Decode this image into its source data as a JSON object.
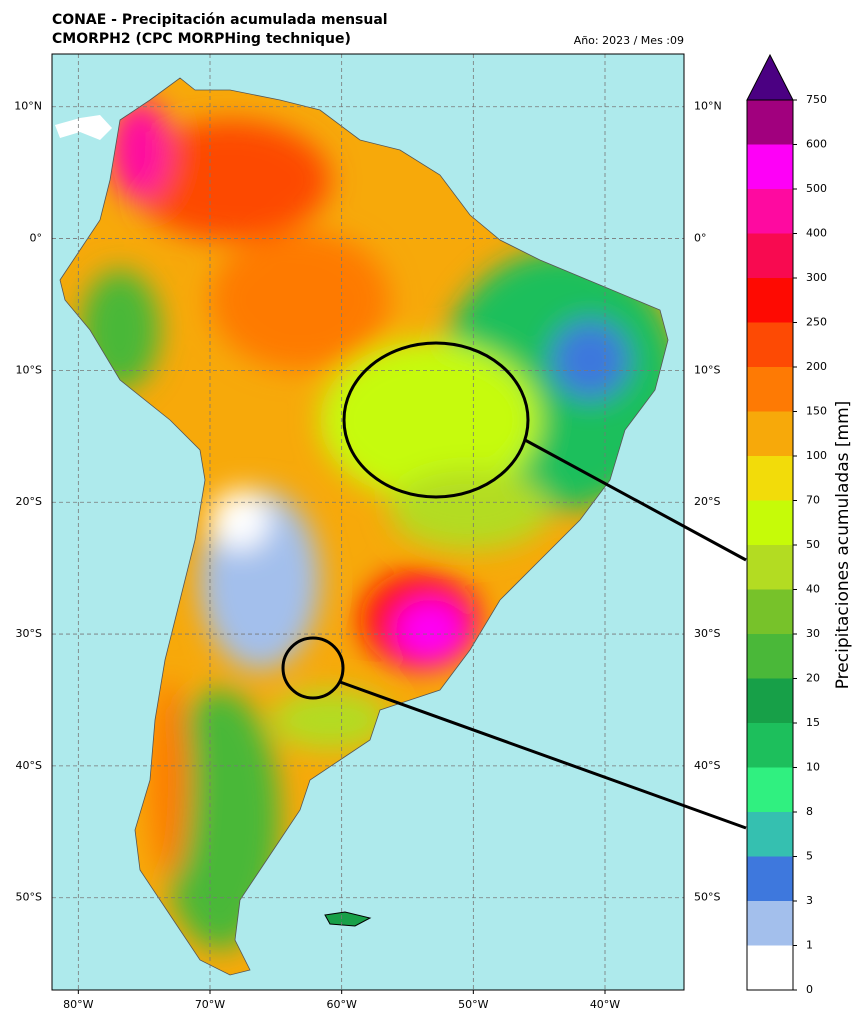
{
  "header": {
    "title": "CONAE - Precipitación acumulada mensual",
    "subtitle": "CMORPH2 (CPC MORPHing technique)",
    "date": "Año: 2023 / Mes :09"
  },
  "map": {
    "lon_range": [
      -82,
      -34
    ],
    "lat_range": [
      14,
      -57
    ],
    "lat_ticks": [
      {
        "value": 10,
        "label": "10°N"
      },
      {
        "value": 0,
        "label": "0°"
      },
      {
        "value": -10,
        "label": "10°S"
      },
      {
        "value": -20,
        "label": "20°S"
      },
      {
        "value": -30,
        "label": "30°S"
      },
      {
        "value": -40,
        "label": "40°S"
      },
      {
        "value": -50,
        "label": "50°S"
      }
    ],
    "lon_ticks": [
      {
        "value": -80,
        "label": "80°W"
      },
      {
        "value": -70,
        "label": "70°W"
      },
      {
        "value": -60,
        "label": "60°W"
      },
      {
        "value": -50,
        "label": "50°W"
      },
      {
        "value": -40,
        "label": "40°W"
      }
    ]
  },
  "colorbar": {
    "label": "Precipitaciones acumuladas [mm]",
    "levels": [
      0,
      1,
      3,
      5,
      8,
      10,
      15,
      20,
      30,
      40,
      50,
      70,
      100,
      150,
      200,
      250,
      300,
      400,
      500,
      600,
      750
    ],
    "colors": [
      "#ffffff",
      "#a3bfec",
      "#3e78dd",
      "#35c0b0",
      "#30f080",
      "#1dbf5c",
      "#17a048",
      "#4ab839",
      "#77c22a",
      "#b3dc22",
      "#c6fb08",
      "#f2dc0a",
      "#f7a90a",
      "#fe7a04",
      "#fd4a04",
      "#fe0a02",
      "#f80a50",
      "#fe0aa0",
      "#fe00f7",
      "#a1007e"
    ],
    "extend_color": "#4b0082"
  }
}
